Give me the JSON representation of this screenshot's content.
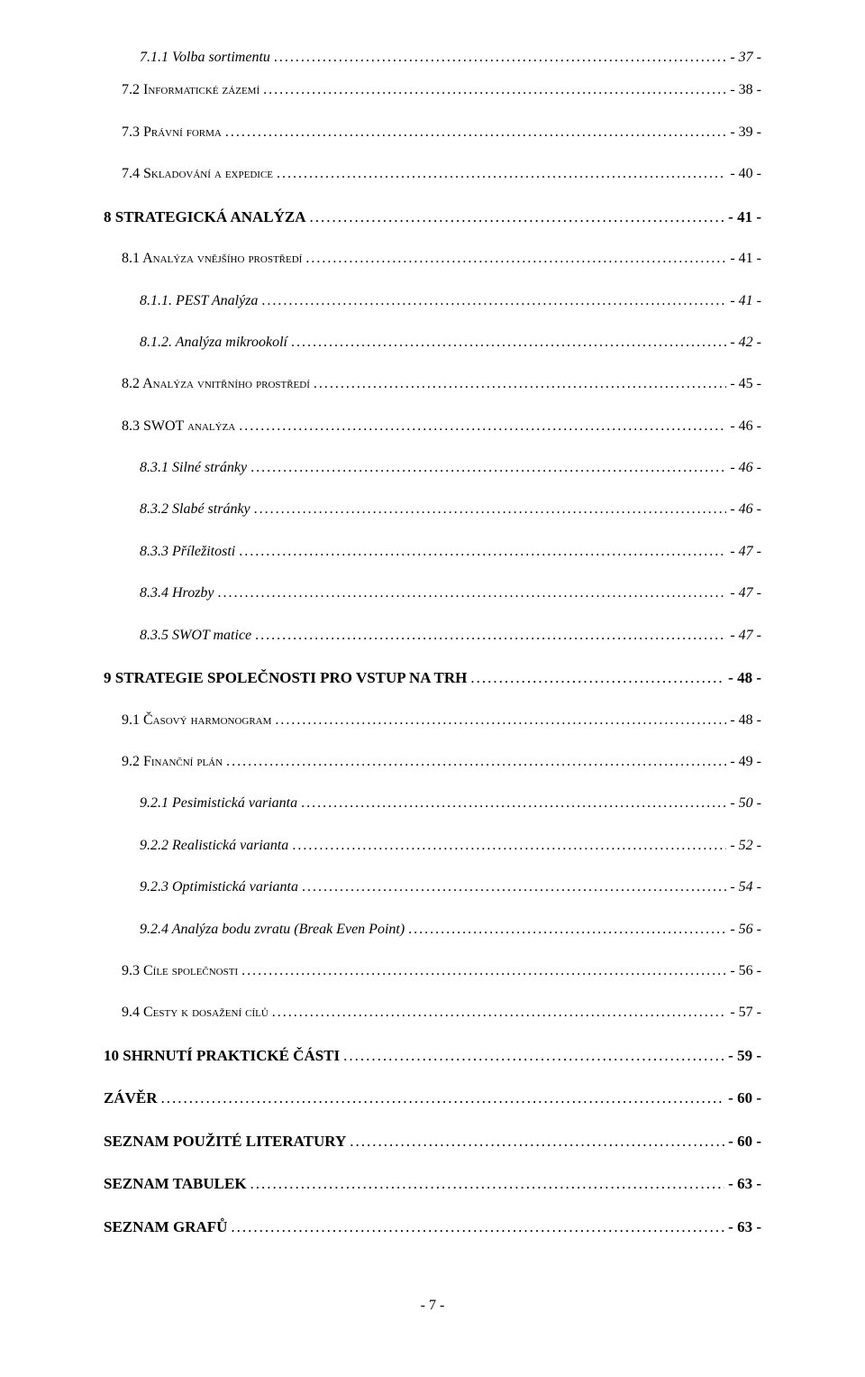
{
  "toc": [
    {
      "label": "7.1.1 Volba sortimentu",
      "page": "- 37 -",
      "indent": 40,
      "fontSize": 16,
      "italic": true,
      "bold": false,
      "smallcaps": false,
      "spacing": 18
    },
    {
      "label": "7.2 Informatické zázemí",
      "page": "- 38 -",
      "indent": 20,
      "fontSize": 16,
      "italic": false,
      "bold": false,
      "smallcaps": true,
      "spacing": 28
    },
    {
      "label": "7.3 Právní forma",
      "page": "- 39 -",
      "indent": 20,
      "fontSize": 16,
      "italic": false,
      "bold": false,
      "smallcaps": true,
      "spacing": 28
    },
    {
      "label": "7.4 Skladování a expedice",
      "page": "- 40 -",
      "indent": 20,
      "fontSize": 16,
      "italic": false,
      "bold": false,
      "smallcaps": true,
      "spacing": 28
    },
    {
      "label": "8 STRATEGICKÁ ANALÝZA",
      "page": "- 41 -",
      "indent": 0,
      "fontSize": 17,
      "italic": false,
      "bold": true,
      "smallcaps": false,
      "spacing": 28
    },
    {
      "label": "8.1 Analýza vnějšího prostředí",
      "page": "- 41 -",
      "indent": 20,
      "fontSize": 16,
      "italic": false,
      "bold": false,
      "smallcaps": true,
      "spacing": 28
    },
    {
      "label": "8.1.1. PEST Analýza",
      "page": "- 41 -",
      "indent": 40,
      "fontSize": 16,
      "italic": true,
      "bold": false,
      "smallcaps": false,
      "spacing": 28
    },
    {
      "label": "8.1.2. Analýza mikrookolí",
      "page": "- 42 -",
      "indent": 40,
      "fontSize": 16,
      "italic": true,
      "bold": false,
      "smallcaps": false,
      "spacing": 28
    },
    {
      "label": "8.2 Analýza vnitřního prostředí",
      "page": "- 45 -",
      "indent": 20,
      "fontSize": 16,
      "italic": false,
      "bold": false,
      "smallcaps": true,
      "spacing": 28
    },
    {
      "label": "8.3 SWOT analýza",
      "page": "- 46 -",
      "indent": 20,
      "fontSize": 16,
      "italic": false,
      "bold": false,
      "smallcaps": true,
      "spacing": 28
    },
    {
      "label": "8.3.1 Silné stránky",
      "page": "- 46 -",
      "indent": 40,
      "fontSize": 16,
      "italic": true,
      "bold": false,
      "smallcaps": false,
      "spacing": 28
    },
    {
      "label": "8.3.2 Slabé stránky",
      "page": "- 46 -",
      "indent": 40,
      "fontSize": 16,
      "italic": true,
      "bold": false,
      "smallcaps": false,
      "spacing": 28
    },
    {
      "label": "8.3.3 Příležitosti",
      "page": "- 47 -",
      "indent": 40,
      "fontSize": 16,
      "italic": true,
      "bold": false,
      "smallcaps": false,
      "spacing": 28
    },
    {
      "label": "8.3.4 Hrozby",
      "page": "- 47 -",
      "indent": 40,
      "fontSize": 16,
      "italic": true,
      "bold": false,
      "smallcaps": false,
      "spacing": 28
    },
    {
      "label": "8.3.5 SWOT matice",
      "page": "- 47 -",
      "indent": 40,
      "fontSize": 16,
      "italic": true,
      "bold": false,
      "smallcaps": false,
      "spacing": 28
    },
    {
      "label": "9 STRATEGIE SPOLEČNOSTI PRO VSTUP NA TRH",
      "page": "- 48 -",
      "indent": 0,
      "fontSize": 17,
      "italic": false,
      "bold": true,
      "smallcaps": false,
      "spacing": 28
    },
    {
      "label": "9.1 Časový harmonogram",
      "page": "- 48 -",
      "indent": 20,
      "fontSize": 16,
      "italic": false,
      "bold": false,
      "smallcaps": true,
      "spacing": 28
    },
    {
      "label": "9.2 Finanční plán",
      "page": "- 49 -",
      "indent": 20,
      "fontSize": 16,
      "italic": false,
      "bold": false,
      "smallcaps": true,
      "spacing": 28
    },
    {
      "label": "9.2.1 Pesimistická varianta",
      "page": "- 50 -",
      "indent": 40,
      "fontSize": 16,
      "italic": true,
      "bold": false,
      "smallcaps": false,
      "spacing": 28
    },
    {
      "label": "9.2.2 Realistická varianta",
      "page": "- 52 -",
      "indent": 40,
      "fontSize": 16,
      "italic": true,
      "bold": false,
      "smallcaps": false,
      "spacing": 28
    },
    {
      "label": "9.2.3 Optimistická varianta",
      "page": "- 54 -",
      "indent": 40,
      "fontSize": 16,
      "italic": true,
      "bold": false,
      "smallcaps": false,
      "spacing": 28
    },
    {
      "label": "9.2.4 Analýza bodu zvratu (Break Even Point)",
      "page": "- 56 -",
      "indent": 40,
      "fontSize": 16,
      "italic": true,
      "bold": false,
      "smallcaps": false,
      "spacing": 28
    },
    {
      "label": "9.3 Cíle společnosti",
      "page": "- 56 -",
      "indent": 20,
      "fontSize": 16,
      "italic": false,
      "bold": false,
      "smallcaps": true,
      "spacing": 28
    },
    {
      "label": "9.4 Cesty k dosažení cílů",
      "page": "- 57 -",
      "indent": 20,
      "fontSize": 16,
      "italic": false,
      "bold": false,
      "smallcaps": true,
      "spacing": 28
    },
    {
      "label": "10 SHRNUTÍ PRAKTICKÉ ČÁSTI",
      "page": "- 59 -",
      "indent": 0,
      "fontSize": 17,
      "italic": false,
      "bold": true,
      "smallcaps": false,
      "spacing": 28
    },
    {
      "label": "ZÁVĚR",
      "page": "- 60 -",
      "indent": 0,
      "fontSize": 17,
      "italic": false,
      "bold": true,
      "smallcaps": false,
      "spacing": 28
    },
    {
      "label": "SEZNAM POUŽITÉ LITERATURY",
      "page": "- 60 -",
      "indent": 0,
      "fontSize": 17,
      "italic": false,
      "bold": true,
      "smallcaps": false,
      "spacing": 28
    },
    {
      "label": "SEZNAM TABULEK",
      "page": "- 63 -",
      "indent": 0,
      "fontSize": 17,
      "italic": false,
      "bold": true,
      "smallcaps": false,
      "spacing": 28
    },
    {
      "label": "SEZNAM GRAFŮ",
      "page": "- 63 -",
      "indent": 0,
      "fontSize": 17,
      "italic": false,
      "bold": true,
      "smallcaps": false,
      "spacing": 28
    }
  ],
  "footer": "- 7 -",
  "colors": {
    "text": "#000000",
    "background": "#ffffff"
  }
}
